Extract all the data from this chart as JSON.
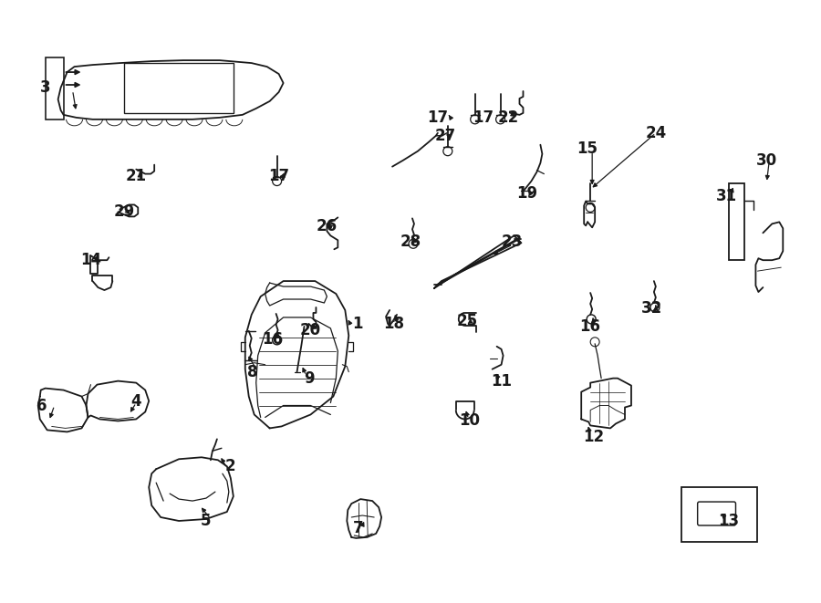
{
  "bg_color": "#ffffff",
  "line_color": "#1a1a1a",
  "figsize": [
    9.0,
    6.61
  ],
  "dpi": 100,
  "label_fs": 11
}
